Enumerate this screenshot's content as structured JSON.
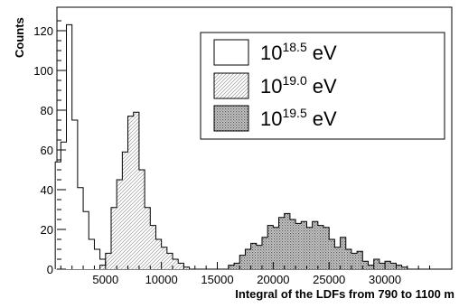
{
  "chart_data": {
    "type": "bar",
    "subtype": "histogram",
    "xlabel": "Integral of the LDFs from 790 to 1100 m",
    "ylabel": "Counts",
    "xlim": [
      0,
      35000
    ],
    "ylim": [
      0,
      130
    ],
    "x_ticks": [
      5000,
      10000,
      15000,
      20000,
      25000,
      30000
    ],
    "y_ticks": [
      0,
      20,
      40,
      60,
      80,
      100,
      120
    ],
    "bin_width": 500,
    "grid": false,
    "legend_position": "top-right",
    "series": [
      {
        "name": "10^18.5 eV",
        "legend_base": "10",
        "legend_exp": "18.5",
        "legend_unit": "eV",
        "fill": "none",
        "bin_starts": [
          500,
          1000,
          1500,
          2000,
          2500,
          3000,
          3500,
          4000,
          4500,
          5000,
          5500
        ],
        "counts": [
          54,
          64,
          123,
          75,
          41,
          29,
          15,
          10,
          5,
          2,
          1
        ]
      },
      {
        "name": "10^19.0 eV",
        "legend_base": "10",
        "legend_exp": "19.0",
        "legend_unit": "eV",
        "fill": "hatched",
        "bin_starts": [
          4500,
          5000,
          5500,
          6000,
          6500,
          7000,
          7500,
          8000,
          8500,
          9000,
          9500,
          10000,
          10500,
          11000,
          11500,
          12000
        ],
        "counts": [
          2,
          8,
          31,
          45,
          59,
          77,
          79,
          50,
          31,
          22,
          15,
          11,
          8,
          5,
          3,
          1
        ]
      },
      {
        "name": "10^19.5 eV",
        "legend_base": "10",
        "legend_exp": "19.5",
        "legend_unit": "eV",
        "fill": "dotted",
        "bin_starts": [
          16000,
          16500,
          17000,
          17500,
          18000,
          18500,
          19000,
          19500,
          20000,
          20500,
          21000,
          21500,
          22000,
          22500,
          23000,
          23500,
          24000,
          24500,
          25000,
          25500,
          26000,
          26500,
          27000,
          27500,
          28000,
          28500,
          29000,
          29500,
          30000,
          30500,
          31000,
          31500
        ],
        "counts": [
          2,
          3,
          7,
          10,
          13,
          12,
          16,
          22,
          21,
          26,
          28,
          25,
          23,
          24,
          21,
          24,
          22,
          21,
          15,
          11,
          16,
          10,
          8,
          9,
          4,
          2,
          5,
          3,
          4,
          3,
          2,
          1
        ]
      }
    ]
  }
}
